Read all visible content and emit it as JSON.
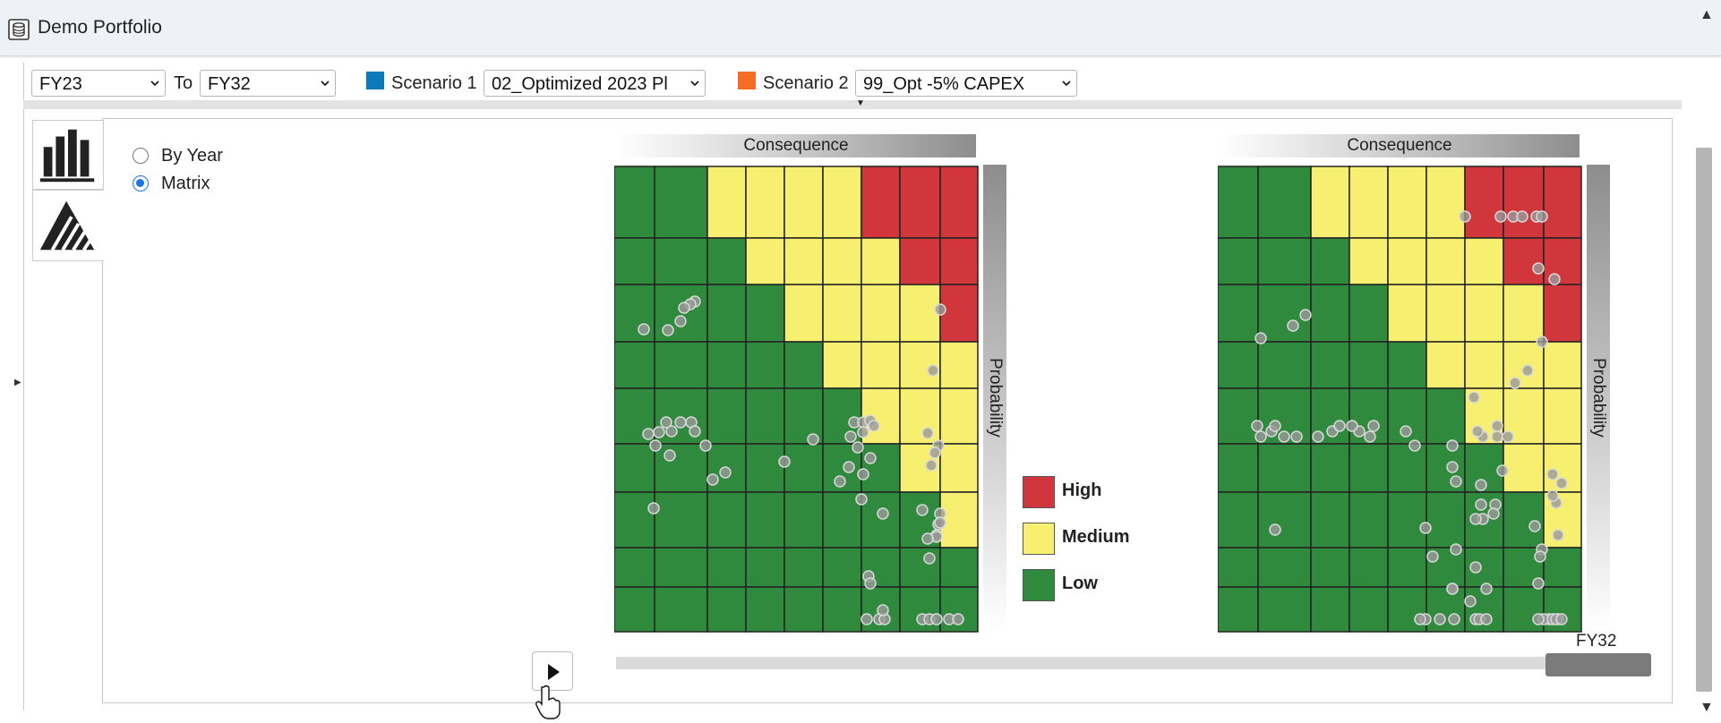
{
  "window": {
    "title": "Demo Portfolio"
  },
  "toolbar": {
    "from_year": "FY23",
    "to_label": "To",
    "to_year": "FY32",
    "scenario1_label": "Scenario 1",
    "scenario1_value": "02_Optimized 2023 Pl",
    "scenario1_color": "#0a7ab8",
    "scenario2_label": "Scenario 2",
    "scenario2_value": "99_Opt -5% CAPEX",
    "scenario2_color": "#f46d25"
  },
  "view_options": [
    {
      "label": "By Year",
      "selected": false
    },
    {
      "label": "Matrix",
      "selected": true
    }
  ],
  "axis": {
    "consequence": "Consequence",
    "probability": "Probability"
  },
  "legend": [
    {
      "label": "High",
      "color": "#d1363c"
    },
    {
      "label": "Medium",
      "color": "#f6ef6f"
    },
    {
      "label": "Low",
      "color": "#2f8a3e"
    }
  ],
  "risk_grid": [
    "LLMMMMHHH",
    "LLLMMMMHH",
    "LLLLMMMMH",
    "LLLLLMMMM",
    "LLLLLLMMM",
    "LLLLLLLMM",
    "LLLLLLLLM",
    "LLLLLLLLL",
    "LLLLLLLLL"
  ],
  "slider": {
    "year_label": "FY32",
    "position": 1.0
  },
  "icons": {
    "app": "portfolio-icon",
    "chart_tab": "bar-chart-icon",
    "matrix_tab": "risk-matrix-icon",
    "play": "play-icon"
  }
}
